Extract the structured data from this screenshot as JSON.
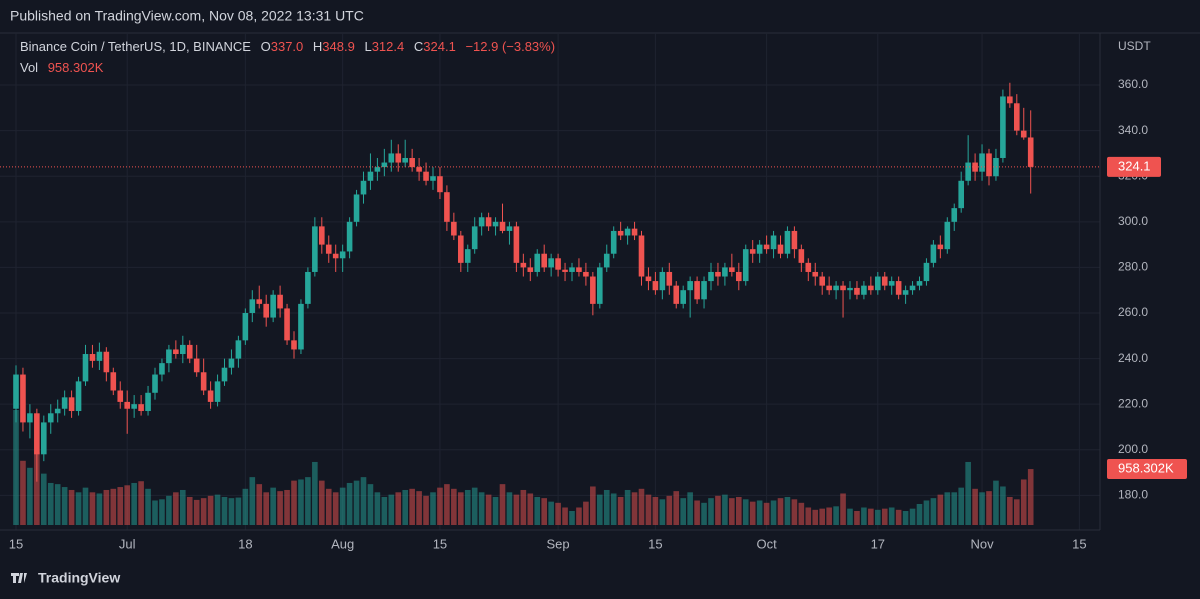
{
  "header_text": "Published on TradingView.com, Nov 08, 2022 13:31 UTC",
  "footer_text": "TradingView",
  "chart_data": {
    "type": "candlestick",
    "legend": {
      "symbol": "Binance Coin / TetherUS, 1D, BINANCE",
      "o": "O",
      "h": "H",
      "l": "L",
      "c": "C",
      "change": "−12.9 (−3.83%)",
      "vol": "Vol"
    },
    "open_label": "337.0",
    "last_volume_label": "958.302K",
    "y_unit": "USDT",
    "up_color": "#26a69a",
    "down_color": "#ef5350",
    "ylim": [
      164.8,
      380.2
    ],
    "yticks": [
      {
        "value": 180,
        "label": "180.0"
      },
      {
        "value": 200,
        "label": "200.0"
      },
      {
        "value": 220,
        "label": "220.0"
      },
      {
        "value": 240,
        "label": "240.0"
      },
      {
        "value": 260,
        "label": "260.0"
      },
      {
        "value": 280,
        "label": "280.0"
      },
      {
        "value": 300,
        "label": "300.0"
      },
      {
        "value": 320,
        "label": "320.0"
      },
      {
        "value": 340,
        "label": "340.0"
      },
      {
        "value": 360,
        "label": "360.0"
      }
    ],
    "xticks": [
      {
        "value": 0,
        "label": "15"
      },
      {
        "value": 16,
        "label": "Jul"
      },
      {
        "value": 33,
        "label": "18"
      },
      {
        "value": 47,
        "label": "Aug"
      },
      {
        "value": 61,
        "label": "15"
      },
      {
        "value": 78,
        "label": "Sep"
      },
      {
        "value": 92,
        "label": "15"
      },
      {
        "value": 108,
        "label": "Oct"
      },
      {
        "value": 124,
        "label": "17"
      },
      {
        "value": 139,
        "label": "Nov"
      },
      {
        "value": 153,
        "label": "15"
      }
    ],
    "grid": true,
    "candles": [
      [
        218,
        237,
        212,
        233
      ],
      [
        233,
        236,
        208,
        212
      ],
      [
        212,
        220,
        205,
        216
      ],
      [
        216,
        218,
        186,
        198
      ],
      [
        198,
        215,
        195,
        212
      ],
      [
        212,
        220,
        207,
        216
      ],
      [
        216,
        222,
        212,
        218
      ],
      [
        218,
        226,
        215,
        223
      ],
      [
        223,
        226,
        214,
        217
      ],
      [
        217,
        232,
        215,
        230
      ],
      [
        230,
        246,
        228,
        242
      ],
      [
        242,
        246,
        236,
        239
      ],
      [
        239,
        247,
        235,
        243
      ],
      [
        243,
        245,
        230,
        234
      ],
      [
        234,
        236,
        224,
        226
      ],
      [
        226,
        230,
        218,
        221
      ],
      [
        221,
        226,
        207,
        218
      ],
      [
        218,
        224,
        214,
        220
      ],
      [
        220,
        224,
        215,
        217
      ],
      [
        217,
        228,
        215,
        225
      ],
      [
        225,
        236,
        222,
        233
      ],
      [
        233,
        240,
        230,
        238
      ],
      [
        238,
        246,
        234,
        244
      ],
      [
        244,
        248,
        240,
        242
      ],
      [
        242,
        250,
        238,
        246
      ],
      [
        246,
        248,
        238,
        240
      ],
      [
        240,
        246,
        232,
        234
      ],
      [
        234,
        240,
        224,
        226
      ],
      [
        226,
        230,
        218,
        221
      ],
      [
        221,
        233,
        219,
        230
      ],
      [
        230,
        240,
        228,
        236
      ],
      [
        236,
        244,
        233,
        240
      ],
      [
        240,
        250,
        236,
        248
      ],
      [
        248,
        262,
        246,
        260
      ],
      [
        260,
        270,
        256,
        266
      ],
      [
        266,
        272,
        262,
        264
      ],
      [
        264,
        268,
        254,
        258
      ],
      [
        258,
        270,
        256,
        268
      ],
      [
        268,
        272,
        258,
        262
      ],
      [
        262,
        264,
        246,
        248
      ],
      [
        248,
        252,
        240,
        244
      ],
      [
        244,
        266,
        242,
        264
      ],
      [
        264,
        280,
        262,
        278
      ],
      [
        278,
        302,
        276,
        298
      ],
      [
        298,
        302,
        286,
        290
      ],
      [
        290,
        294,
        282,
        286
      ],
      [
        286,
        290,
        278,
        284
      ],
      [
        284,
        290,
        278,
        287
      ],
      [
        287,
        302,
        284,
        300
      ],
      [
        300,
        314,
        298,
        312
      ],
      [
        312,
        322,
        308,
        318
      ],
      [
        318,
        330,
        314,
        322
      ],
      [
        322,
        328,
        318,
        324
      ],
      [
        324,
        332,
        320,
        326
      ],
      [
        326,
        336,
        322,
        330
      ],
      [
        330,
        334,
        322,
        326
      ],
      [
        326,
        336,
        324,
        328
      ],
      [
        328,
        332,
        322,
        324
      ],
      [
        324,
        328,
        318,
        322
      ],
      [
        322,
        326,
        316,
        318
      ],
      [
        318,
        324,
        314,
        320
      ],
      [
        320,
        324,
        310,
        313
      ],
      [
        313,
        316,
        296,
        300
      ],
      [
        300,
        304,
        292,
        294
      ],
      [
        294,
        296,
        278,
        282
      ],
      [
        282,
        290,
        278,
        288
      ],
      [
        288,
        302,
        286,
        298
      ],
      [
        298,
        304,
        294,
        302
      ],
      [
        302,
        304,
        296,
        298
      ],
      [
        298,
        302,
        294,
        300
      ],
      [
        300,
        308,
        295,
        296
      ],
      [
        296,
        300,
        290,
        298
      ],
      [
        298,
        300,
        278,
        282
      ],
      [
        282,
        286,
        276,
        280
      ],
      [
        280,
        284,
        274,
        278
      ],
      [
        278,
        288,
        276,
        286
      ],
      [
        286,
        290,
        278,
        280
      ],
      [
        280,
        286,
        276,
        284
      ],
      [
        284,
        286,
        276,
        279
      ],
      [
        279,
        282,
        274,
        278
      ],
      [
        278,
        282,
        274,
        280
      ],
      [
        280,
        284,
        276,
        278
      ],
      [
        278,
        282,
        272,
        276
      ],
      [
        276,
        278,
        259,
        264
      ],
      [
        264,
        282,
        262,
        280
      ],
      [
        280,
        290,
        278,
        286
      ],
      [
        286,
        298,
        284,
        296
      ],
      [
        296,
        300,
        292,
        294
      ],
      [
        294,
        298,
        290,
        297
      ],
      [
        297,
        300,
        292,
        294
      ],
      [
        294,
        296,
        272,
        276
      ],
      [
        276,
        280,
        270,
        274
      ],
      [
        274,
        278,
        268,
        270
      ],
      [
        270,
        280,
        266,
        278
      ],
      [
        278,
        282,
        268,
        272
      ],
      [
        272,
        274,
        262,
        264
      ],
      [
        264,
        272,
        262,
        270
      ],
      [
        270,
        276,
        258,
        274
      ],
      [
        274,
        276,
        264,
        266
      ],
      [
        266,
        276,
        262,
        274
      ],
      [
        274,
        282,
        270,
        278
      ],
      [
        278,
        282,
        272,
        276
      ],
      [
        276,
        282,
        272,
        280
      ],
      [
        280,
        286,
        276,
        278
      ],
      [
        278,
        282,
        270,
        274
      ],
      [
        274,
        290,
        272,
        288
      ],
      [
        288,
        292,
        282,
        286
      ],
      [
        286,
        292,
        282,
        290
      ],
      [
        290,
        294,
        286,
        288
      ],
      [
        288,
        296,
        284,
        294
      ],
      [
        290,
        294,
        284,
        286
      ],
      [
        286,
        298,
        284,
        296
      ],
      [
        296,
        298,
        284,
        288
      ],
      [
        288,
        290,
        278,
        282
      ],
      [
        282,
        284,
        274,
        278
      ],
      [
        278,
        282,
        272,
        276
      ],
      [
        276,
        278,
        268,
        272
      ],
      [
        272,
        276,
        268,
        270
      ],
      [
        270,
        274,
        266,
        272
      ],
      [
        272,
        274,
        258,
        270
      ],
      [
        270,
        274,
        266,
        271
      ],
      [
        271,
        274,
        266,
        268
      ],
      [
        268,
        274,
        266,
        272
      ],
      [
        272,
        276,
        268,
        270
      ],
      [
        270,
        278,
        268,
        276
      ],
      [
        276,
        278,
        270,
        272
      ],
      [
        272,
        276,
        268,
        274
      ],
      [
        274,
        276,
        266,
        268
      ],
      [
        268,
        272,
        264,
        270
      ],
      [
        270,
        274,
        268,
        272
      ],
      [
        272,
        276,
        270,
        274
      ],
      [
        274,
        284,
        272,
        282
      ],
      [
        282,
        292,
        280,
        290
      ],
      [
        290,
        294,
        284,
        288
      ],
      [
        288,
        302,
        286,
        300
      ],
      [
        300,
        308,
        296,
        306
      ],
      [
        306,
        322,
        304,
        318
      ],
      [
        318,
        338,
        316,
        326
      ],
      [
        326,
        330,
        318,
        322
      ],
      [
        322,
        334,
        318,
        330
      ],
      [
        330,
        332,
        316,
        320
      ],
      [
        320,
        332,
        318,
        328
      ],
      [
        328,
        358,
        326,
        355
      ],
      [
        355,
        361,
        350,
        352
      ],
      [
        352,
        356,
        338,
        340
      ],
      [
        340,
        350,
        336,
        337
      ],
      [
        337,
        348.9,
        312.4,
        324.1
      ]
    ],
    "volumes": [
      1970,
      1100,
      980,
      1250,
      880,
      720,
      700,
      650,
      600,
      560,
      640,
      560,
      540,
      600,
      620,
      650,
      680,
      720,
      750,
      620,
      420,
      440,
      500,
      560,
      600,
      480,
      430,
      460,
      500,
      520,
      480,
      460,
      470,
      620,
      820,
      700,
      560,
      640,
      580,
      600,
      760,
      780,
      820,
      1080,
      760,
      620,
      560,
      640,
      720,
      760,
      820,
      700,
      560,
      480,
      520,
      560,
      600,
      620,
      580,
      500,
      560,
      640,
      700,
      620,
      560,
      600,
      640,
      560,
      520,
      480,
      700,
      560,
      520,
      600,
      540,
      480,
      460,
      400,
      380,
      300,
      240,
      300,
      400,
      660,
      520,
      600,
      540,
      480,
      600,
      560,
      620,
      520,
      480,
      440,
      500,
      580,
      460,
      560,
      420,
      380,
      460,
      500,
      520,
      460,
      480,
      440,
      400,
      420,
      380,
      420,
      460,
      480,
      440,
      380,
      300,
      260,
      280,
      300,
      320,
      540,
      280,
      240,
      300,
      280,
      260,
      280,
      300,
      260,
      240,
      280,
      360,
      420,
      460,
      520,
      560,
      560,
      640,
      1080,
      620,
      560,
      580,
      760,
      660,
      480,
      440,
      780,
      958.302
    ]
  }
}
